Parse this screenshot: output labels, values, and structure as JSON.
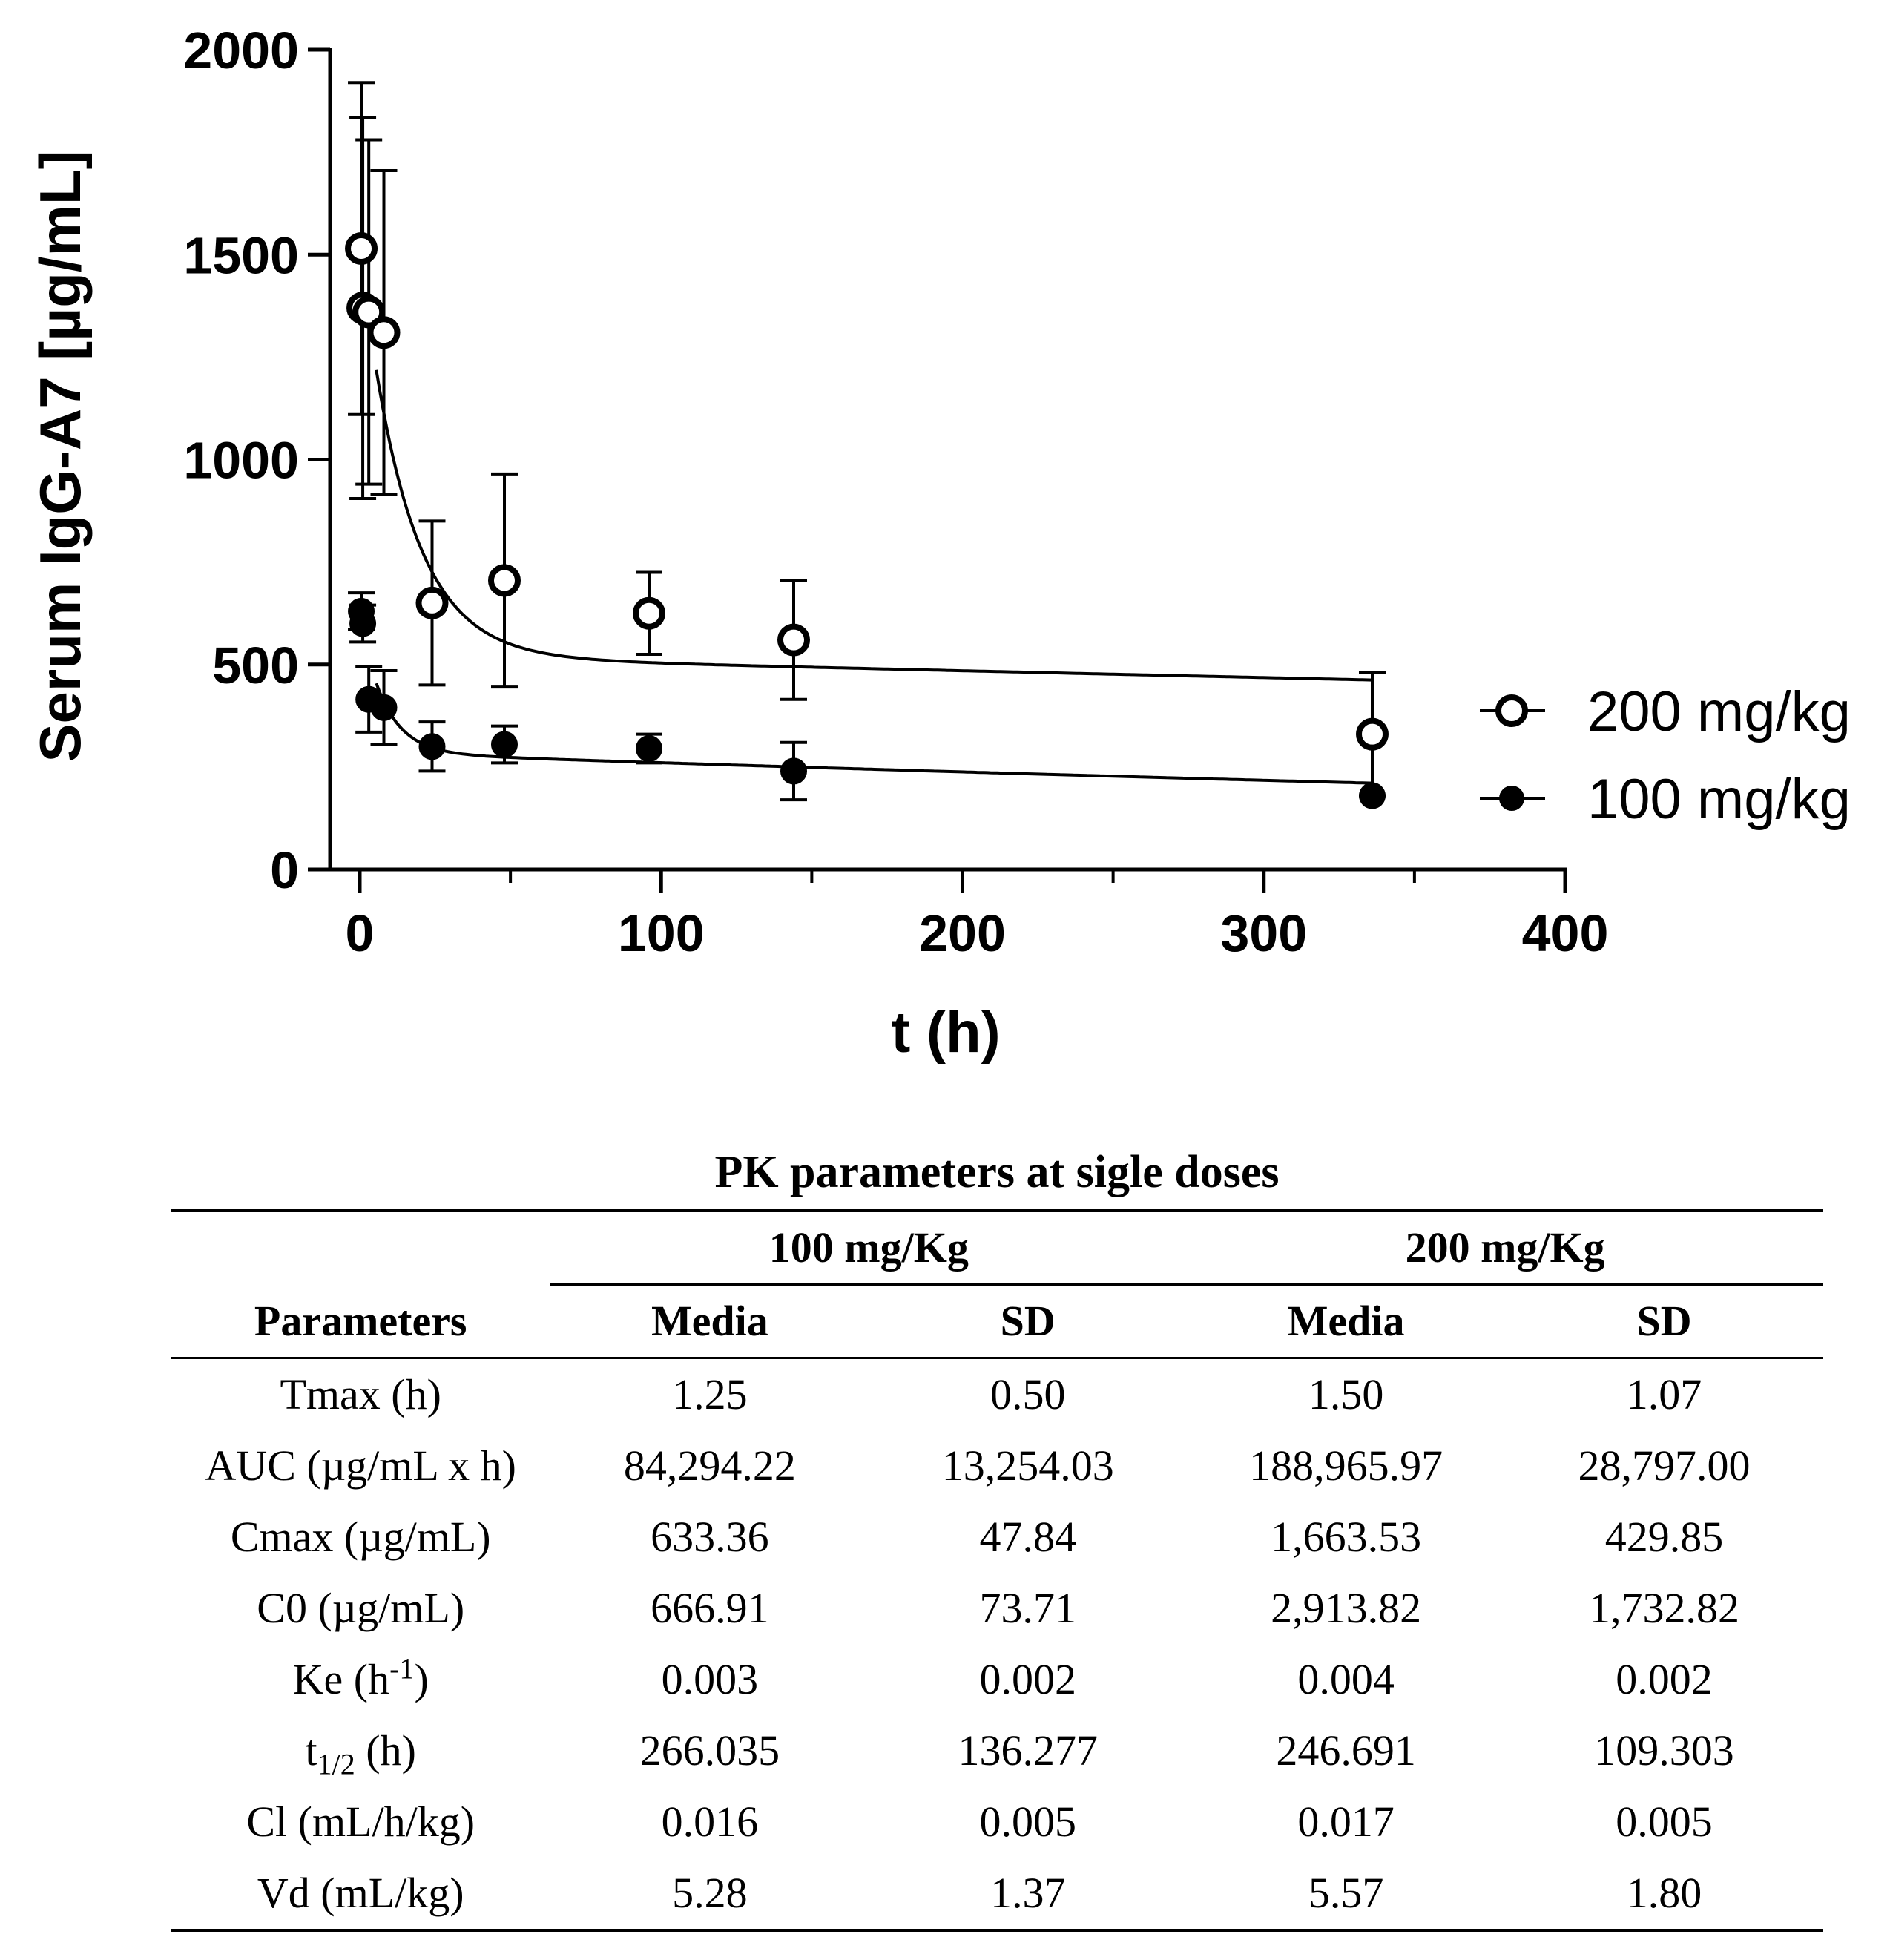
{
  "chart_data": {
    "type": "scatter",
    "title": "",
    "xlabel": "t (h)",
    "ylabel": "Serum IgG-A7 [µg/mL]",
    "xlim": [
      0,
      400
    ],
    "ylim": [
      0,
      2000
    ],
    "x_ticks": [
      "0",
      "100",
      "200",
      "300",
      "400"
    ],
    "y_ticks": [
      "0",
      "500",
      "1000",
      "1500",
      "2000"
    ],
    "legend_position": "right",
    "series": [
      {
        "name": "200 mg/kg",
        "marker": "open-circle",
        "x": [
          0.5,
          1,
          3,
          8,
          24,
          48,
          96,
          144,
          336
        ],
        "y": [
          1515,
          1370,
          1360,
          1310,
          650,
          705,
          625,
          560,
          330
        ],
        "err": [
          405,
          465,
          420,
          395,
          200,
          260,
          100,
          145,
          150
        ],
        "fit": {
          "A": 1000,
          "alpha": 0.065,
          "B": 520,
          "beta": 0.00035
        }
      },
      {
        "name": "100 mg/kg",
        "marker": "filled-circle",
        "x": [
          0.5,
          1,
          3,
          8,
          24,
          48,
          96,
          144,
          336
        ],
        "y": [
          630,
          600,
          415,
          395,
          300,
          305,
          295,
          240,
          180
        ],
        "err": [
          45,
          45,
          80,
          90,
          60,
          45,
          35,
          70,
          0
        ],
        "fit": {
          "A": 330,
          "alpha": 0.12,
          "B": 285,
          "beta": 0.0009
        }
      }
    ]
  },
  "table": {
    "title": "PK parameters at sigle doses",
    "group_headers": [
      "100 mg/Kg",
      "200 mg/Kg"
    ],
    "col_headers": [
      "Parameters",
      "Media",
      "SD",
      "Media",
      "SD"
    ],
    "rows": [
      {
        "param": "Tmax (h)",
        "values": [
          "1.25",
          "0.50",
          "1.50",
          "1.07"
        ]
      },
      {
        "param": "AUC (µg/mL x h)",
        "values": [
          "84,294.22",
          "13,254.03",
          "188,965.97",
          "28,797.00"
        ]
      },
      {
        "param": "Cmax (µg/mL)",
        "values": [
          "633.36",
          "47.84",
          "1,663.53",
          "429.85"
        ]
      },
      {
        "param": "C0 (µg/mL)",
        "values": [
          "666.91",
          "73.71",
          "2,913.82",
          "1,732.82"
        ]
      },
      {
        "param_base": "Ke (h",
        "param_sup": "-1",
        "param_tail": ")",
        "values": [
          "0.003",
          "0.002",
          "0.004",
          "0.002"
        ]
      },
      {
        "param_base": "t",
        "param_sub": "1/2",
        "param_tail": " (h)",
        "values": [
          "266.035",
          "136.277",
          "246.691",
          "109.303"
        ]
      },
      {
        "param": "Cl (mL/h/kg)",
        "values": [
          "0.016",
          "0.005",
          "0.017",
          "0.005"
        ]
      },
      {
        "param": "Vd (mL/kg)",
        "values": [
          "5.28",
          "1.37",
          "5.57",
          "1.80"
        ]
      }
    ]
  }
}
